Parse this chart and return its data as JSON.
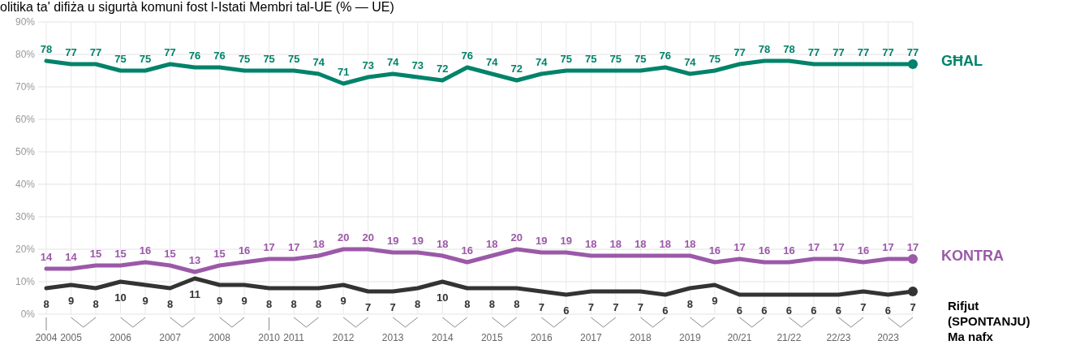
{
  "chart_data": {
    "type": "line",
    "title": "olitika ta' difiża u sigurtà komuni fost l-Istati Membri tal-UE (% — UE)",
    "categories": [
      "2004",
      "2005",
      null,
      "2006",
      null,
      "2007",
      null,
      "2008",
      null,
      "2010",
      "2011",
      null,
      "2012",
      null,
      "2013",
      null,
      "2014",
      null,
      "2015",
      null,
      "2016",
      null,
      "2017",
      null,
      "2018",
      null,
      "2019",
      null,
      "20/21",
      null,
      "21/22",
      null,
      "22/23",
      null,
      "2023",
      null
    ],
    "ylim": [
      0,
      90
    ],
    "yticks": [
      {
        "value": 0,
        "label": "0%"
      },
      {
        "value": 10,
        "label": "10%"
      },
      {
        "value": 20,
        "label": "20%"
      },
      {
        "value": 30,
        "label": "30%"
      },
      {
        "value": 40,
        "label": "40%"
      },
      {
        "value": 50,
        "label": "50%"
      },
      {
        "value": 60,
        "label": "60%"
      },
      {
        "value": 70,
        "label": "70%"
      },
      {
        "value": 80,
        "label": "80%"
      },
      {
        "value": 90,
        "label": "90%"
      }
    ],
    "grid": true,
    "data_labels": true,
    "legend": "right",
    "marker": "none",
    "line_style": "solid",
    "series": [
      {
        "name": "GĦAL",
        "color": "#00836a",
        "values": [
          78,
          77,
          77,
          75,
          75,
          77,
          76,
          76,
          75,
          75,
          75,
          74,
          71,
          73,
          74,
          73,
          72,
          76,
          74,
          72,
          74,
          75,
          75,
          75,
          75,
          76,
          74,
          75,
          77,
          78,
          78,
          77,
          77,
          77,
          77,
          77
        ]
      },
      {
        "name": "KONTRA",
        "color": "#9b59a8",
        "values": [
          14,
          14,
          15,
          15,
          16,
          15,
          13,
          15,
          16,
          17,
          17,
          18,
          20,
          20,
          19,
          19,
          18,
          16,
          18,
          20,
          19,
          19,
          18,
          18,
          18,
          18,
          18,
          16,
          17,
          16,
          16,
          17,
          17,
          16,
          17,
          17
        ]
      },
      {
        "name": "Rifjut\n(SPONTANJU)\nMa nafx",
        "color": "#333333",
        "values": [
          8,
          9,
          8,
          10,
          9,
          8,
          11,
          9,
          9,
          8,
          8,
          8,
          9,
          7,
          7,
          8,
          10,
          8,
          8,
          8,
          7,
          6,
          7,
          7,
          7,
          6,
          8,
          9,
          6,
          6,
          6,
          6,
          6,
          7,
          6,
          7
        ]
      }
    ]
  }
}
